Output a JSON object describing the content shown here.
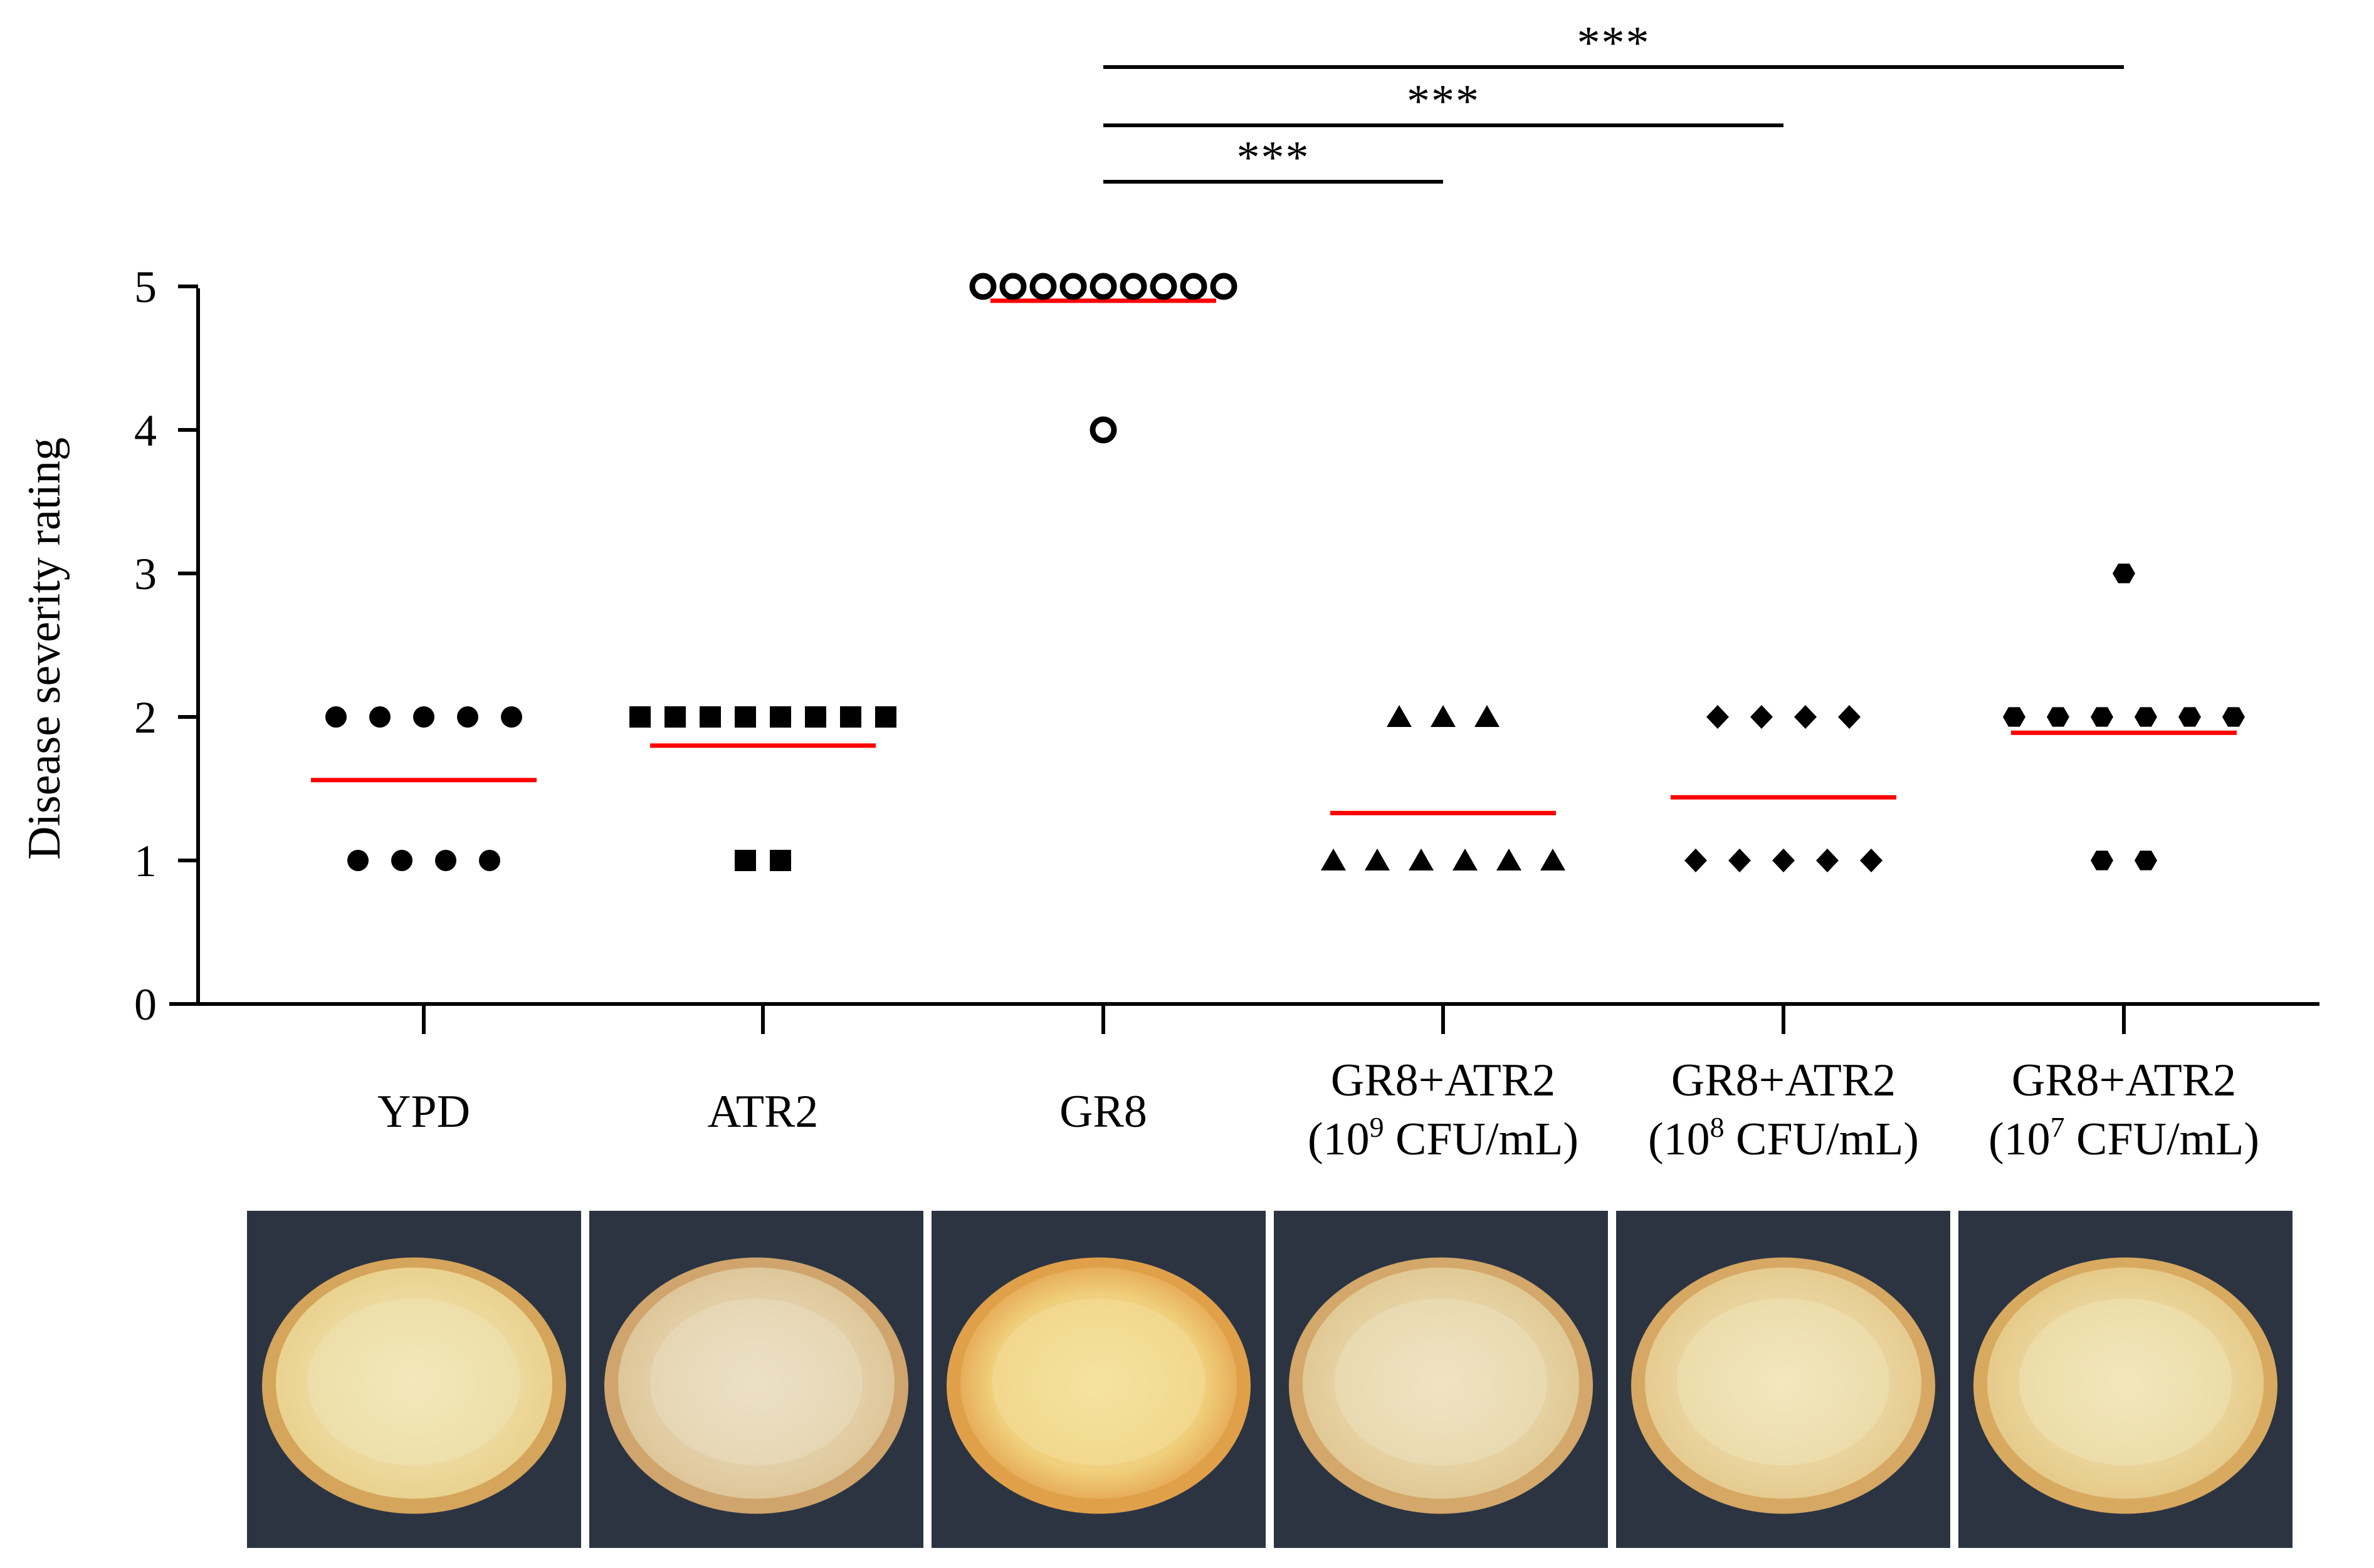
{
  "chart_data": {
    "type": "scatter",
    "title": "",
    "xlabel": "",
    "ylabel": "Disease severity rating",
    "ylim": [
      0,
      5
    ],
    "yticks": [
      "0",
      "1",
      "2",
      "3",
      "4",
      "5"
    ],
    "grid": false,
    "categories": [
      {
        "line1": "YPD",
        "line2": "",
        "sup": "",
        "line2_end": ""
      },
      {
        "line1": "ATR2",
        "line2": "",
        "sup": "",
        "line2_end": ""
      },
      {
        "line1": "GR8",
        "line2": "",
        "sup": "",
        "line2_end": ""
      },
      {
        "line1": "GR8+ATR2",
        "line2": "(10",
        "sup": "9",
        "line2_end": " CFU/mL)"
      },
      {
        "line1": "GR8+ATR2",
        "line2": "(10",
        "sup": "8",
        "line2_end": " CFU/mL)"
      },
      {
        "line1": "GR8+ATR2",
        "line2": "(10",
        "sup": "7",
        "line2_end": " CFU/mL)"
      }
    ],
    "series": [
      {
        "marker": "circle",
        "points": [
          {
            "y": 2,
            "count": 5
          },
          {
            "y": 1,
            "count": 4
          }
        ],
        "mean": 1.56
      },
      {
        "marker": "square",
        "points": [
          {
            "y": 2,
            "count": 8
          },
          {
            "y": 1,
            "count": 2
          }
        ],
        "mean": 1.8
      },
      {
        "marker": "open-circle",
        "points": [
          {
            "y": 5,
            "count": 9
          },
          {
            "y": 4,
            "count": 1
          }
        ],
        "mean": 4.9
      },
      {
        "marker": "triangle",
        "points": [
          {
            "y": 2,
            "count": 3
          },
          {
            "y": 1,
            "count": 6
          }
        ],
        "mean": 1.33
      },
      {
        "marker": "diamond",
        "points": [
          {
            "y": 2,
            "count": 4
          },
          {
            "y": 1,
            "count": 5
          }
        ],
        "mean": 1.44
      },
      {
        "marker": "hexagon",
        "points": [
          {
            "y": 3,
            "count": 1
          },
          {
            "y": 2,
            "count": 6
          },
          {
            "y": 1,
            "count": 2
          }
        ],
        "mean": 1.89
      }
    ],
    "significance": [
      {
        "from": 2,
        "to": 3,
        "label": "***"
      },
      {
        "from": 2,
        "to": 4,
        "label": "***"
      },
      {
        "from": 2,
        "to": 5,
        "label": "***"
      }
    ],
    "colors": {
      "marker": "#000000",
      "mean_line": "#ff0000",
      "axis": "#000000"
    }
  },
  "photos": {
    "background": "#2c3442",
    "items": [
      {
        "flesh": "#f3e2a8",
        "rim": "#d4a55a",
        "interior": "#efe4b5"
      },
      {
        "flesh": "#eddcb4",
        "rim": "#cfa56d",
        "interior": "#e9ddc0"
      },
      {
        "flesh": "#f5d58a",
        "rim": "#e0a04a",
        "interior": "#f3df9a"
      },
      {
        "flesh": "#efdfb2",
        "rim": "#d3a86a",
        "interior": "#ece0bd"
      },
      {
        "flesh": "#f1e1ae",
        "rim": "#d6a863",
        "interior": "#efe3b8"
      },
      {
        "flesh": "#f2e2ab",
        "rim": "#d8aa60",
        "interior": "#efe4b6"
      }
    ]
  }
}
